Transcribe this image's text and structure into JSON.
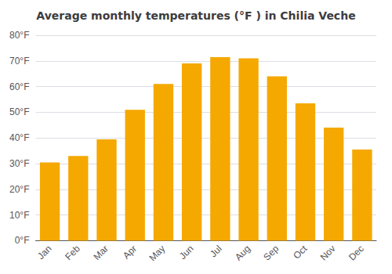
{
  "chart_data": {
    "type": "bar",
    "title": "Average monthly temperatures (°F ) in Chilia Veche",
    "categories": [
      "Jan",
      "Feb",
      "Mar",
      "Apr",
      "May",
      "Jun",
      "Jul",
      "Aug",
      "Sep",
      "Oct",
      "Nov",
      "Dec"
    ],
    "values": [
      30.5,
      33.0,
      39.5,
      51.0,
      61.0,
      69.0,
      71.5,
      71.0,
      64.0,
      53.5,
      44.0,
      35.5
    ],
    "color": "#F5A800",
    "ylim": [
      0,
      80
    ],
    "yticks": [
      {
        "value": 0,
        "label": "0°F"
      },
      {
        "value": 10,
        "label": "10°F"
      },
      {
        "value": 20,
        "label": "20°F"
      },
      {
        "value": 30,
        "label": "30°F"
      },
      {
        "value": 40,
        "label": "40°F"
      },
      {
        "value": 50,
        "label": "50°F"
      },
      {
        "value": 60,
        "label": "60°F"
      },
      {
        "value": 70,
        "label": "70°F"
      },
      {
        "value": 80,
        "label": "80°F"
      }
    ],
    "grid": true
  }
}
